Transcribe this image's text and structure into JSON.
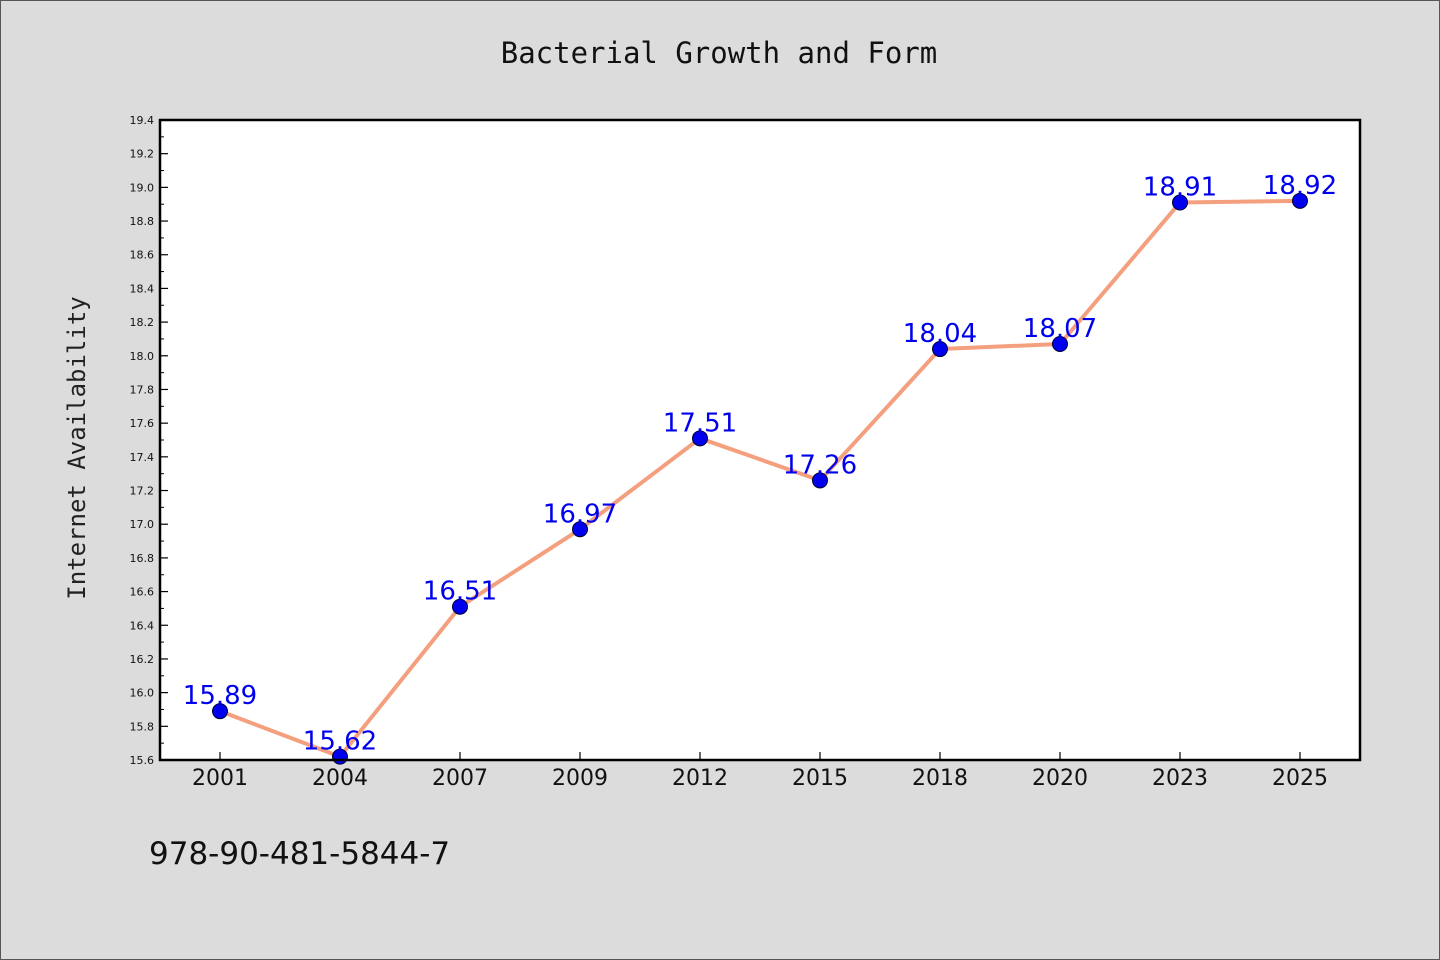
{
  "chart_data": {
    "type": "line",
    "title": "Bacterial Growth and Form",
    "xlabel": "",
    "ylabel": "Internet Availability",
    "categories": [
      "2001",
      "2004",
      "2007",
      "2009",
      "2012",
      "2015",
      "2018",
      "2020",
      "2023",
      "2025"
    ],
    "series": [
      {
        "values": [
          15.89,
          15.62,
          16.51,
          16.97,
          17.51,
          17.26,
          18.04,
          18.07,
          18.91,
          18.92
        ],
        "labels": [
          "15.89",
          "15.62",
          "16.51",
          "16.97",
          "17.51",
          "17.26",
          "18.04",
          "18.07",
          "18.91",
          "18.92"
        ]
      }
    ],
    "ylim": [
      15.6,
      19.4
    ],
    "yticks": [
      "15.6",
      "15.8",
      "16.0",
      "16.2",
      "16.4",
      "16.6",
      "16.8",
      "17.0",
      "17.2",
      "17.4",
      "17.6",
      "17.8",
      "18.0",
      "18.2",
      "18.4",
      "18.6",
      "18.8",
      "19.0",
      "19.2",
      "19.4"
    ],
    "grid": false,
    "legend": "none",
    "colors": {
      "line": "#f4a07f",
      "marker": "#0000ee",
      "data_label": "#0000ee",
      "background": "#dcdcdc",
      "plot_background": "#ffffff"
    }
  },
  "footer": {
    "isbn": "978-90-481-5844-7"
  }
}
